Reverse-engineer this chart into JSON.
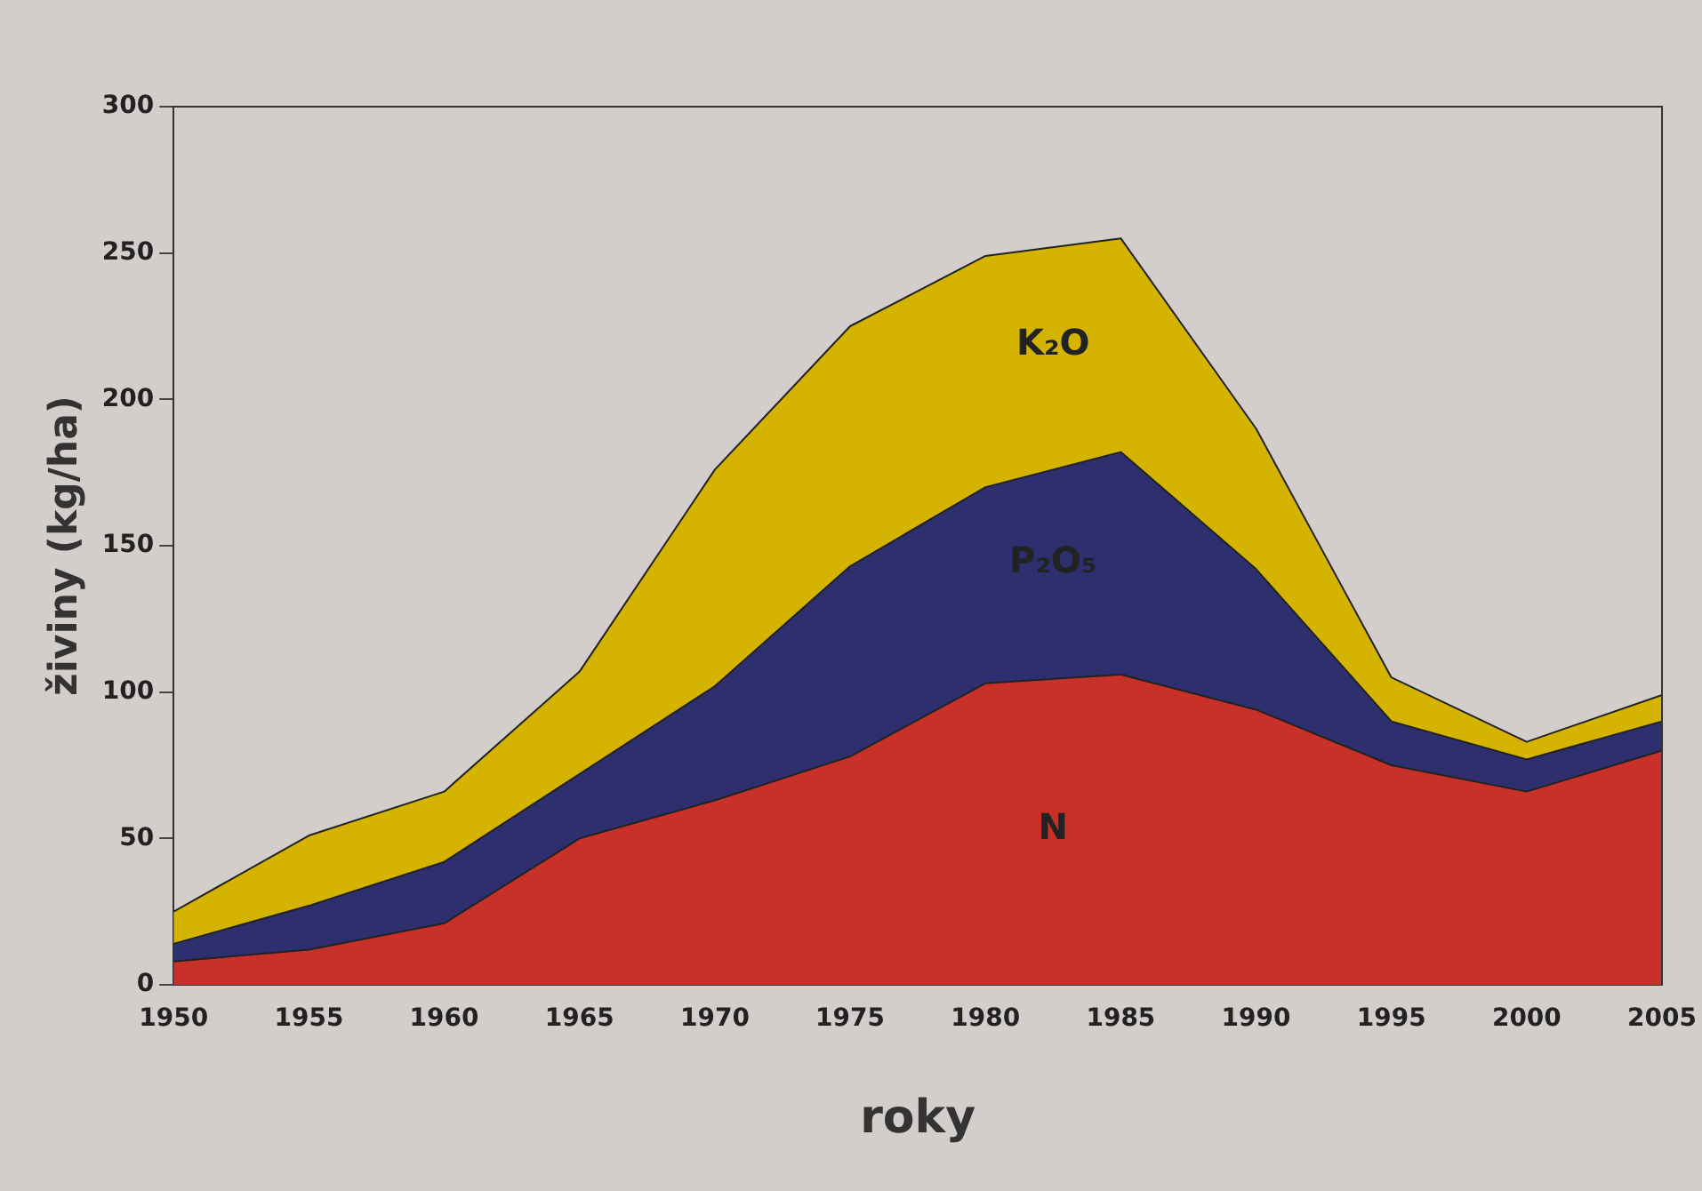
{
  "chart_data": {
    "type": "area",
    "stacked": true,
    "xlabel": "roky",
    "ylabel": "živiny (kg/ha)",
    "x": [
      1950,
      1955,
      1960,
      1965,
      1970,
      1975,
      1980,
      1985,
      1990,
      1995,
      2000,
      2005
    ],
    "series": [
      {
        "name": "N",
        "color": "#c8302a",
        "values": [
          8,
          12,
          21,
          50,
          63,
          78,
          103,
          106,
          94,
          75,
          66,
          80
        ]
      },
      {
        "name": "P₂O₅",
        "color": "#2e2f6e",
        "values": [
          6,
          15,
          21,
          22,
          39,
          65,
          67,
          76,
          48,
          15,
          11,
          10
        ]
      },
      {
        "name": "K₂O",
        "color": "#d4b400",
        "values": [
          11,
          24,
          24,
          35,
          74,
          82,
          79,
          73,
          48,
          15,
          6,
          9
        ]
      }
    ],
    "xlim": [
      1950,
      2005
    ],
    "xticks": [
      1950,
      1955,
      1960,
      1965,
      1970,
      1975,
      1980,
      1985,
      1990,
      1995,
      2000,
      2005
    ],
    "ylim": [
      0,
      300
    ],
    "yticks": [
      0,
      50,
      100,
      150,
      200,
      250,
      300
    ],
    "grid": false,
    "legend": false
  }
}
